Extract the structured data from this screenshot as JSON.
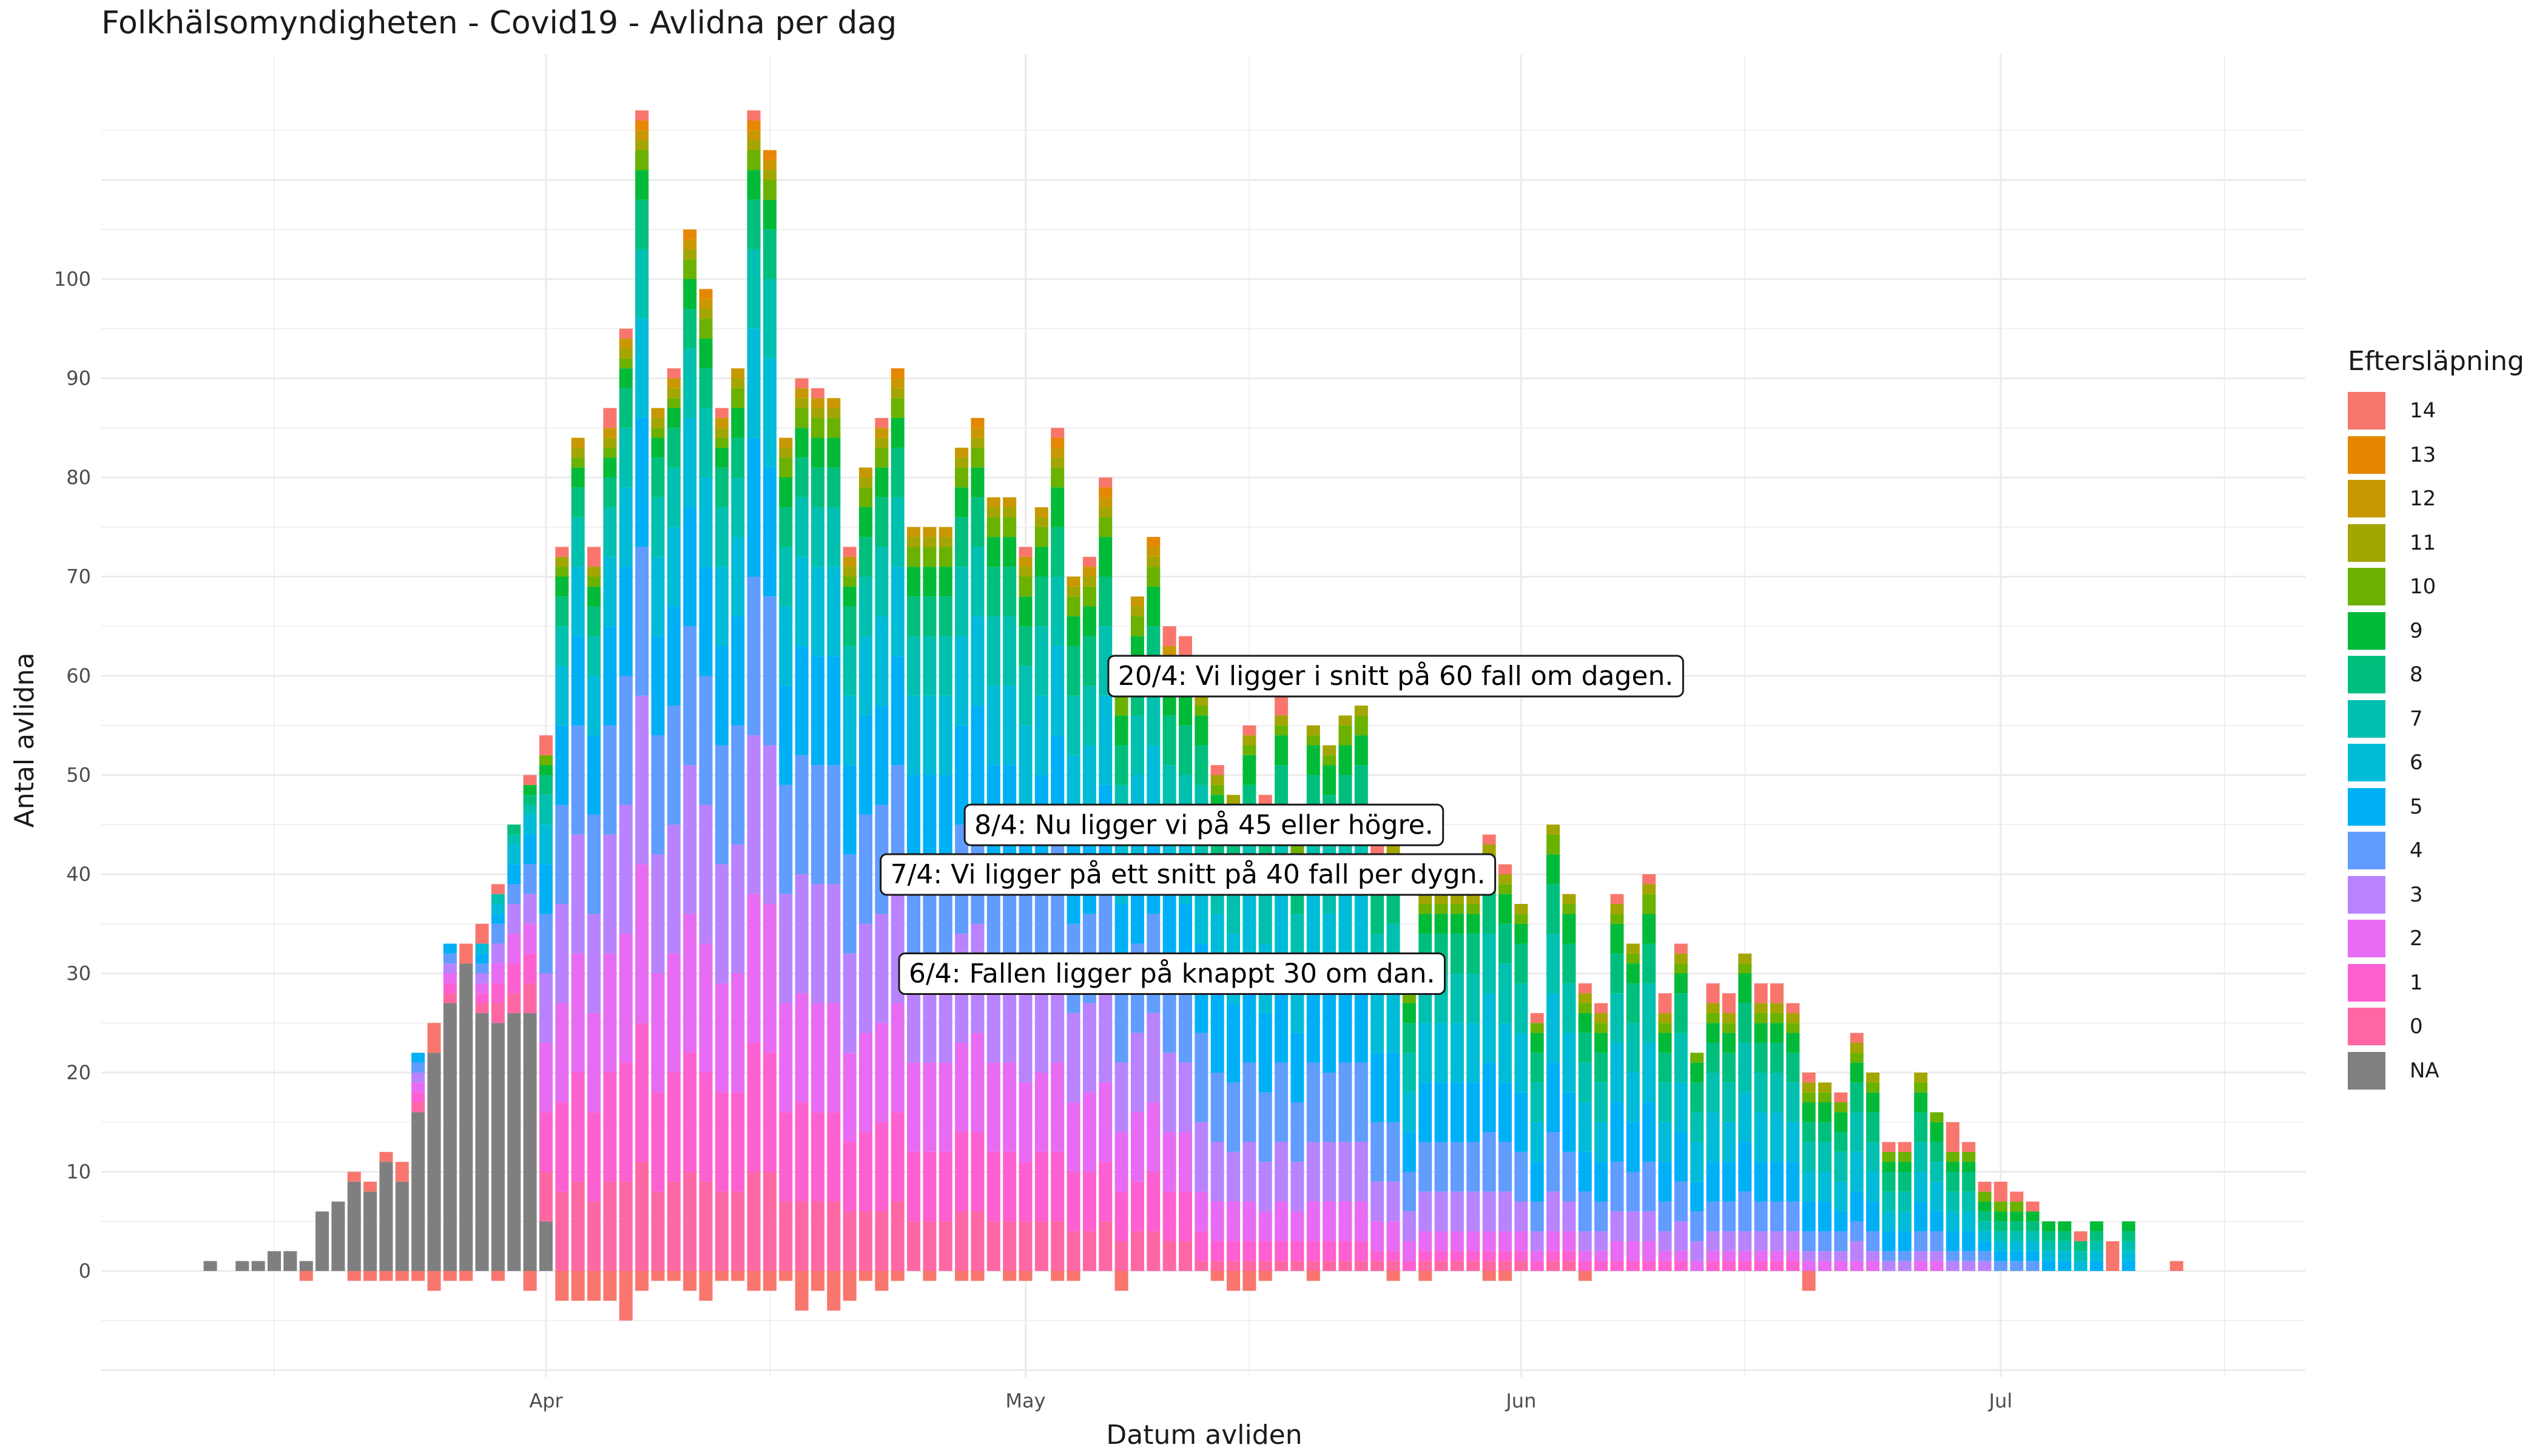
{
  "chart_data": {
    "type": "bar",
    "title": "Folkhälsomyndigheten - Covid19 - Avlidna per dag",
    "xlabel": "Datum avliden",
    "ylabel": "Antal avlidna",
    "x_ticks": [
      {
        "date": "2020-04-01",
        "label": "Apr"
      },
      {
        "date": "2020-05-01",
        "label": "May"
      },
      {
        "date": "2020-06-01",
        "label": "Jun"
      },
      {
        "date": "2020-07-01",
        "label": "Jul"
      }
    ],
    "y_ticks": [
      0,
      10,
      20,
      30,
      40,
      50,
      60,
      70,
      80,
      90,
      100
    ],
    "ylim": [
      -10,
      115
    ],
    "xlim": [
      "2020-03-04",
      "2020-07-21"
    ],
    "grid": true,
    "legend": {
      "title": "Eftersläpning",
      "position": "right",
      "items": [
        "14",
        "13",
        "12",
        "11",
        "10",
        "9",
        "8",
        "7",
        "6",
        "5",
        "4",
        "3",
        "2",
        "1",
        "0",
        "NA"
      ]
    },
    "colors": {
      "14": "#F8766D",
      "13": "#E58700",
      "12": "#C99800",
      "11": "#A3A500",
      "10": "#6BB100",
      "9": "#00BA38",
      "8": "#00BF7D",
      "7": "#00C0AF",
      "6": "#00BCD8",
      "5": "#00B0F6",
      "4": "#619CFF",
      "3": "#B983FF",
      "2": "#E76BF3",
      "1": "#FD61D1",
      "0": "#FF67A4",
      "NA": "#7F7F7F"
    },
    "start_date": "2020-03-11",
    "daily_totals": [
      1,
      0,
      1,
      1,
      2,
      2,
      1,
      6,
      7,
      10,
      9,
      12,
      11,
      22,
      25,
      33,
      33,
      35,
      39,
      45,
      50,
      54,
      73,
      83,
      73,
      87,
      95,
      117,
      87,
      91,
      104,
      99,
      87,
      91,
      117,
      113,
      83,
      90,
      89,
      88,
      73,
      79,
      86,
      89,
      75,
      75,
      75,
      82,
      85,
      78,
      78,
      73,
      76,
      85,
      70,
      72,
      80,
      60,
      68,
      74,
      65,
      64,
      58,
      51,
      48,
      55,
      48,
      59,
      44,
      54,
      53,
      55,
      56,
      43,
      43,
      28,
      38,
      40,
      40,
      40,
      44,
      41,
      37,
      26,
      45,
      38,
      29,
      27,
      38,
      33,
      40,
      28,
      33,
      22,
      29,
      28,
      32,
      29,
      29,
      27,
      20,
      19,
      18,
      24,
      20,
      13,
      13,
      20,
      16,
      15,
      13,
      9,
      9,
      8,
      7,
      5,
      5,
      4,
      5,
      3,
      5,
      0,
      0,
      1
    ],
    "negative_totals": [
      0,
      0,
      0,
      0,
      0,
      0,
      1,
      0,
      0,
      1,
      1,
      1,
      1,
      1,
      2,
      1,
      1,
      0,
      1,
      0,
      2,
      0,
      3,
      3,
      3,
      3,
      5,
      2,
      1,
      1,
      2,
      3,
      1,
      1,
      2,
      2,
      1,
      4,
      2,
      4,
      3,
      1,
      2,
      1,
      0,
      1,
      0,
      1,
      1,
      0,
      1,
      1,
      0,
      1,
      1,
      0,
      0,
      2,
      0,
      0,
      0,
      0,
      0,
      1,
      2,
      2,
      1,
      0,
      0,
      1,
      0,
      0,
      0,
      0,
      1,
      0,
      1,
      0,
      0,
      0,
      1,
      1,
      0,
      0,
      0,
      0,
      1,
      0,
      0,
      0,
      0,
      0,
      0,
      0,
      0,
      0,
      0,
      0,
      0,
      0,
      2,
      0,
      0,
      0,
      0,
      0,
      0,
      0,
      0,
      0,
      0,
      0,
      0,
      0,
      0,
      0,
      0,
      0,
      0,
      0,
      0,
      0,
      0,
      0
    ],
    "na_values": [
      1,
      0,
      1,
      1,
      2,
      2,
      1,
      6,
      7,
      9,
      8,
      11,
      9,
      16,
      22,
      27,
      31,
      26,
      25,
      26,
      26,
      5
    ],
    "annotations": [
      {
        "date": "2020-04-20",
        "y": 60,
        "text": "20/4: Vi ligger i snitt på 60 fall om dagen."
      },
      {
        "date": "2020-04-08",
        "y": 45,
        "text": "8/4: Nu ligger vi på 45 eller högre."
      },
      {
        "date": "2020-04-07",
        "y": 40,
        "text": "7/4: Vi ligger på ett snitt på 40 fall per dygn."
      },
      {
        "date": "2020-04-06",
        "y": 30,
        "text": "6/4: Fallen ligger på knappt 30 om dan."
      }
    ]
  }
}
